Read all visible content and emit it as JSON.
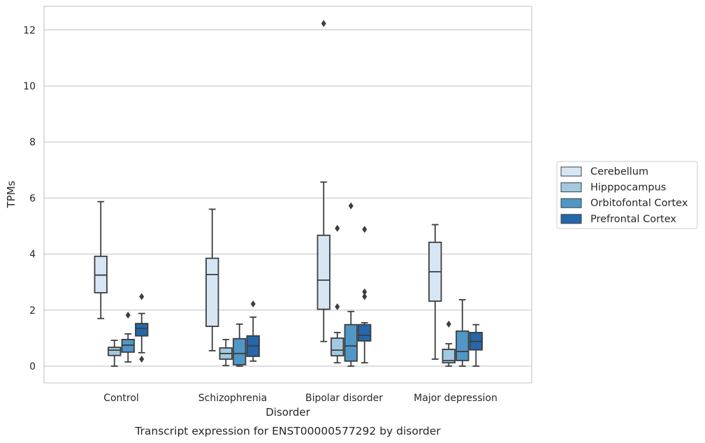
{
  "chart_data": {
    "type": "box",
    "caption": "Transcript expression for ENST00000577292 by disorder",
    "xlabel": "Disorder",
    "ylabel": "TPMs",
    "ylim": [
      -0.6,
      12.85
    ],
    "yticks": [
      0,
      2,
      4,
      6,
      8,
      10,
      12
    ],
    "grid": true,
    "legend_position": "right",
    "categories": [
      "Control",
      "Schizophrenia",
      "Bipolar disorder",
      "Major depression"
    ],
    "series": [
      {
        "name": "Cerebellum",
        "color": "#d7e6f5",
        "boxes": [
          {
            "whislo": 1.7,
            "q1": 2.62,
            "med": 3.25,
            "q3": 3.92,
            "whishi": 5.87,
            "fliers": []
          },
          {
            "whislo": 0.55,
            "q1": 1.42,
            "med": 3.27,
            "q3": 3.85,
            "whishi": 5.6,
            "fliers": []
          },
          {
            "whislo": 0.88,
            "q1": 2.03,
            "med": 3.07,
            "q3": 4.67,
            "whishi": 6.57,
            "fliers": [
              12.23
            ]
          },
          {
            "whislo": 0.25,
            "q1": 2.32,
            "med": 3.37,
            "q3": 4.42,
            "whishi": 5.05,
            "fliers": []
          }
        ]
      },
      {
        "name": "Hipppocampus",
        "color": "#a2c9e1",
        "boxes": [
          {
            "whislo": 0.0,
            "q1": 0.38,
            "med": 0.57,
            "q3": 0.67,
            "whishi": 0.92,
            "fliers": []
          },
          {
            "whislo": 0.02,
            "q1": 0.25,
            "med": 0.45,
            "q3": 0.65,
            "whishi": 0.95,
            "fliers": []
          },
          {
            "whislo": 0.12,
            "q1": 0.37,
            "med": 0.57,
            "q3": 1.0,
            "whishi": 1.2,
            "fliers": [
              2.12,
              4.92
            ]
          },
          {
            "whislo": 0.0,
            "q1": 0.12,
            "med": 0.2,
            "q3": 0.6,
            "whishi": 0.8,
            "fliers": [
              1.5
            ]
          }
        ]
      },
      {
        "name": "Orbitofontal Cortex",
        "color": "#5097c8",
        "boxes": [
          {
            "whislo": 0.15,
            "q1": 0.5,
            "med": 0.75,
            "q3": 0.95,
            "whishi": 1.15,
            "fliers": [
              1.82
            ]
          },
          {
            "whislo": 0.0,
            "q1": 0.05,
            "med": 0.45,
            "q3": 0.98,
            "whishi": 1.5,
            "fliers": []
          },
          {
            "whislo": 0.0,
            "q1": 0.18,
            "med": 0.72,
            "q3": 1.48,
            "whishi": 1.95,
            "fliers": [
              5.72
            ]
          },
          {
            "whislo": 0.0,
            "q1": 0.2,
            "med": 0.52,
            "q3": 1.25,
            "whishi": 2.37,
            "fliers": []
          }
        ]
      },
      {
        "name": "Prefrontal Cortex",
        "color": "#2467aa",
        "boxes": [
          {
            "whislo": 0.48,
            "q1": 1.08,
            "med": 1.35,
            "q3": 1.52,
            "whishi": 1.88,
            "fliers": [
              2.48,
              0.25
            ]
          },
          {
            "whislo": 0.18,
            "q1": 0.35,
            "med": 0.72,
            "q3": 1.08,
            "whishi": 1.75,
            "fliers": [
              2.22
            ]
          },
          {
            "whislo": 0.12,
            "q1": 0.9,
            "med": 1.1,
            "q3": 1.48,
            "whishi": 1.55,
            "fliers": [
              2.48,
              2.65,
              4.88
            ]
          },
          {
            "whislo": 0.0,
            "q1": 0.58,
            "med": 0.88,
            "q3": 1.2,
            "whishi": 1.48,
            "fliers": []
          }
        ]
      }
    ]
  }
}
